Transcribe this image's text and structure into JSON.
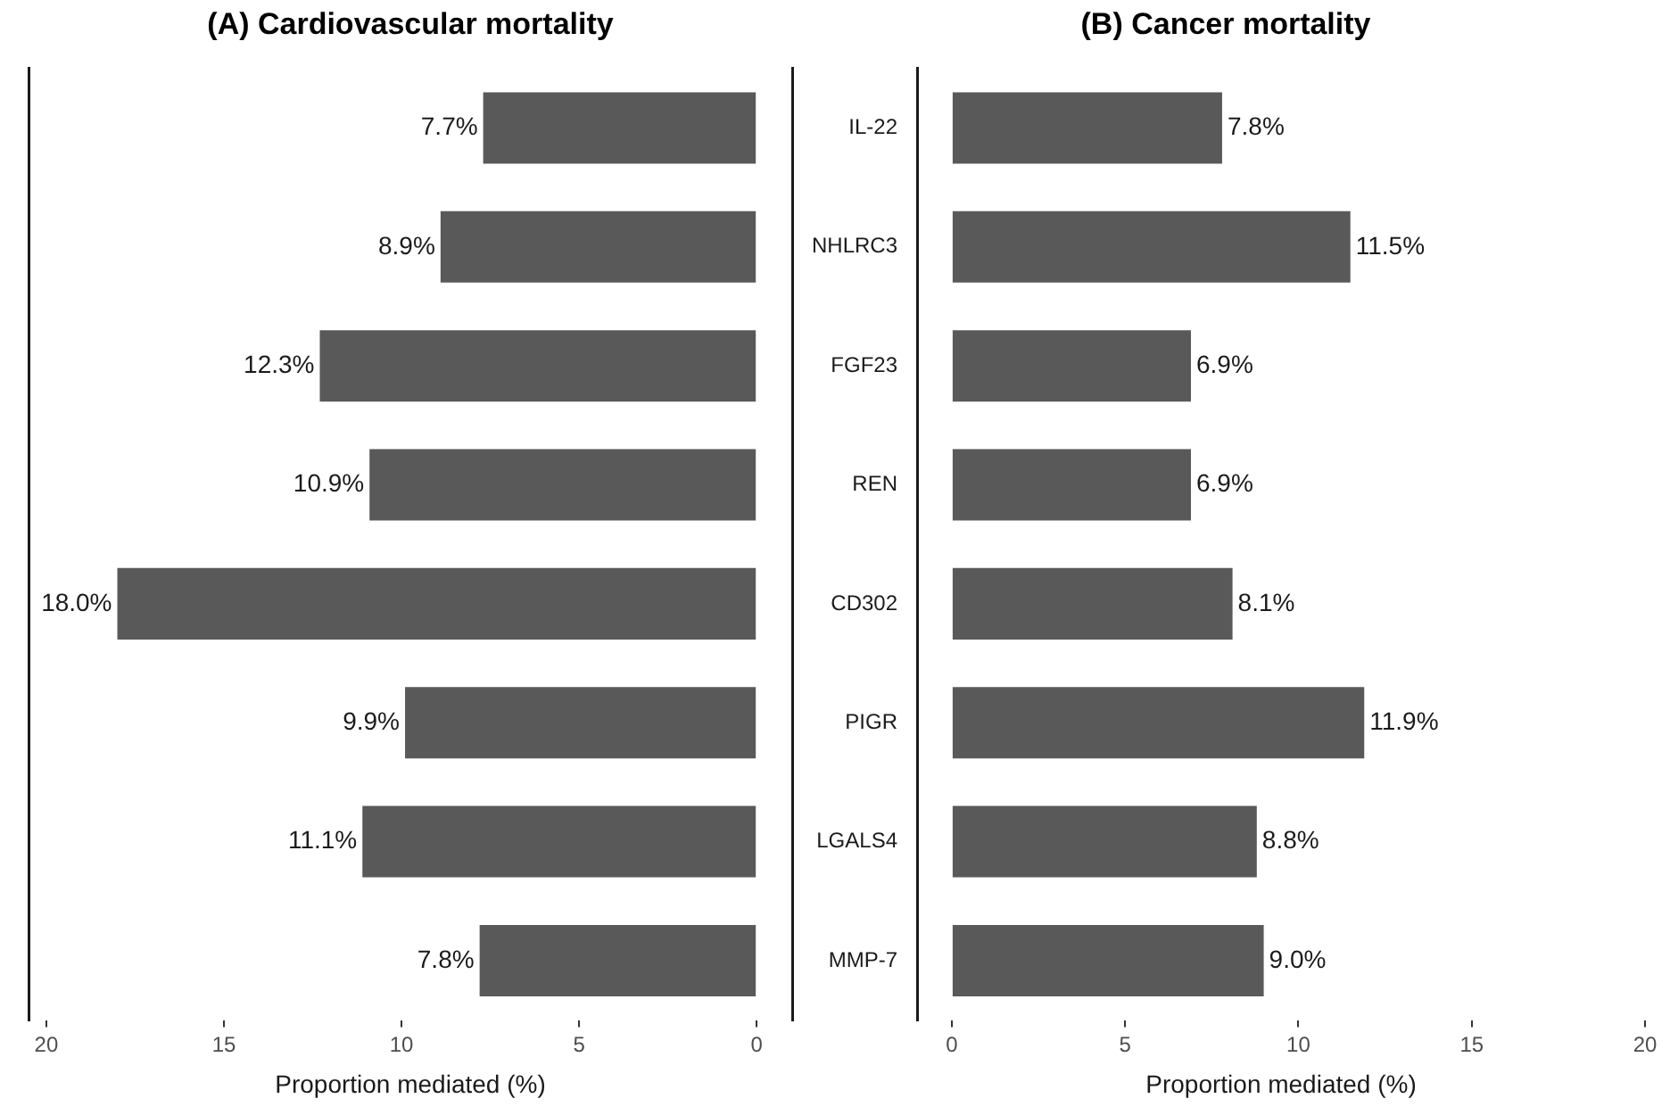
{
  "chart_data": [
    {
      "type": "bar",
      "orientation": "horizontal",
      "title": "(A) Cardiovascular mortality",
      "xlabel": "Proportion mediated (%)",
      "categories": [
        null,
        null,
        null,
        null,
        null,
        null,
        null,
        null
      ],
      "tick_labels": "x",
      "values": [
        7.7,
        8.9,
        12.3,
        10.9,
        18.0,
        9.9,
        11.1,
        7.8
      ],
      "value_labels": [
        "7.7%",
        "8.9%",
        "12.3%",
        "10.9%",
        "18.0%",
        "9.9%",
        "11.1%",
        "7.8%"
      ],
      "color": "#595959",
      "xlim": [
        20.5,
        -1
      ],
      "xticks": [
        20,
        15,
        10,
        5,
        0
      ],
      "grid": false,
      "legend": false
    },
    {
      "type": "bar",
      "orientation": "horizontal",
      "title": "(B) Cancer mortality",
      "xlabel": "Proportion mediated (%)",
      "categories": [
        "IL-22",
        "NHLRC3",
        "FGF23",
        "REN",
        "CD302",
        "PIGR",
        "LGALS4",
        "MMP-7"
      ],
      "values": [
        7.8,
        11.5,
        6.9,
        6.9,
        8.1,
        11.9,
        8.8,
        9.0
      ],
      "value_labels": [
        "7.8%",
        "11.5%",
        "6.9%",
        "6.9%",
        "8.1%",
        "11.9%",
        "8.8%",
        "9.0%"
      ],
      "color": "#595959",
      "xlim": [
        -1,
        20
      ],
      "xticks": [
        0,
        5,
        10,
        15,
        20
      ],
      "grid": false,
      "legend": false
    }
  ]
}
